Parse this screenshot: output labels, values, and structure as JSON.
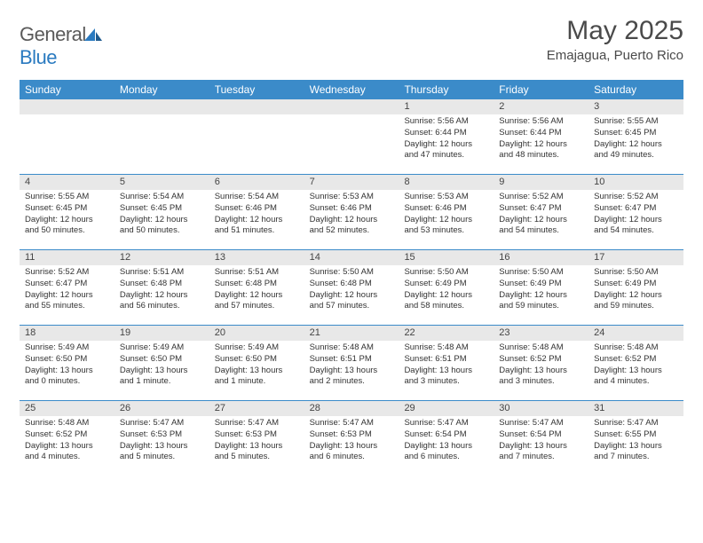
{
  "logo": {
    "text1": "General",
    "text2": "Blue"
  },
  "title": "May 2025",
  "location": "Emajagua, Puerto Rico",
  "header_bg": "#3b8bc9",
  "daynum_bg": "#e8e8e8",
  "weekdays": [
    "Sunday",
    "Monday",
    "Tuesday",
    "Wednesday",
    "Thursday",
    "Friday",
    "Saturday"
  ],
  "weeks": [
    [
      null,
      null,
      null,
      null,
      {
        "n": "1",
        "sr": "5:56 AM",
        "ss": "6:44 PM",
        "dl": "12 hours and 47 minutes."
      },
      {
        "n": "2",
        "sr": "5:56 AM",
        "ss": "6:44 PM",
        "dl": "12 hours and 48 minutes."
      },
      {
        "n": "3",
        "sr": "5:55 AM",
        "ss": "6:45 PM",
        "dl": "12 hours and 49 minutes."
      }
    ],
    [
      {
        "n": "4",
        "sr": "5:55 AM",
        "ss": "6:45 PM",
        "dl": "12 hours and 50 minutes."
      },
      {
        "n": "5",
        "sr": "5:54 AM",
        "ss": "6:45 PM",
        "dl": "12 hours and 50 minutes."
      },
      {
        "n": "6",
        "sr": "5:54 AM",
        "ss": "6:46 PM",
        "dl": "12 hours and 51 minutes."
      },
      {
        "n": "7",
        "sr": "5:53 AM",
        "ss": "6:46 PM",
        "dl": "12 hours and 52 minutes."
      },
      {
        "n": "8",
        "sr": "5:53 AM",
        "ss": "6:46 PM",
        "dl": "12 hours and 53 minutes."
      },
      {
        "n": "9",
        "sr": "5:52 AM",
        "ss": "6:47 PM",
        "dl": "12 hours and 54 minutes."
      },
      {
        "n": "10",
        "sr": "5:52 AM",
        "ss": "6:47 PM",
        "dl": "12 hours and 54 minutes."
      }
    ],
    [
      {
        "n": "11",
        "sr": "5:52 AM",
        "ss": "6:47 PM",
        "dl": "12 hours and 55 minutes."
      },
      {
        "n": "12",
        "sr": "5:51 AM",
        "ss": "6:48 PM",
        "dl": "12 hours and 56 minutes."
      },
      {
        "n": "13",
        "sr": "5:51 AM",
        "ss": "6:48 PM",
        "dl": "12 hours and 57 minutes."
      },
      {
        "n": "14",
        "sr": "5:50 AM",
        "ss": "6:48 PM",
        "dl": "12 hours and 57 minutes."
      },
      {
        "n": "15",
        "sr": "5:50 AM",
        "ss": "6:49 PM",
        "dl": "12 hours and 58 minutes."
      },
      {
        "n": "16",
        "sr": "5:50 AM",
        "ss": "6:49 PM",
        "dl": "12 hours and 59 minutes."
      },
      {
        "n": "17",
        "sr": "5:50 AM",
        "ss": "6:49 PM",
        "dl": "12 hours and 59 minutes."
      }
    ],
    [
      {
        "n": "18",
        "sr": "5:49 AM",
        "ss": "6:50 PM",
        "dl": "13 hours and 0 minutes."
      },
      {
        "n": "19",
        "sr": "5:49 AM",
        "ss": "6:50 PM",
        "dl": "13 hours and 1 minute."
      },
      {
        "n": "20",
        "sr": "5:49 AM",
        "ss": "6:50 PM",
        "dl": "13 hours and 1 minute."
      },
      {
        "n": "21",
        "sr": "5:48 AM",
        "ss": "6:51 PM",
        "dl": "13 hours and 2 minutes."
      },
      {
        "n": "22",
        "sr": "5:48 AM",
        "ss": "6:51 PM",
        "dl": "13 hours and 3 minutes."
      },
      {
        "n": "23",
        "sr": "5:48 AM",
        "ss": "6:52 PM",
        "dl": "13 hours and 3 minutes."
      },
      {
        "n": "24",
        "sr": "5:48 AM",
        "ss": "6:52 PM",
        "dl": "13 hours and 4 minutes."
      }
    ],
    [
      {
        "n": "25",
        "sr": "5:48 AM",
        "ss": "6:52 PM",
        "dl": "13 hours and 4 minutes."
      },
      {
        "n": "26",
        "sr": "5:47 AM",
        "ss": "6:53 PM",
        "dl": "13 hours and 5 minutes."
      },
      {
        "n": "27",
        "sr": "5:47 AM",
        "ss": "6:53 PM",
        "dl": "13 hours and 5 minutes."
      },
      {
        "n": "28",
        "sr": "5:47 AM",
        "ss": "6:53 PM",
        "dl": "13 hours and 6 minutes."
      },
      {
        "n": "29",
        "sr": "5:47 AM",
        "ss": "6:54 PM",
        "dl": "13 hours and 6 minutes."
      },
      {
        "n": "30",
        "sr": "5:47 AM",
        "ss": "6:54 PM",
        "dl": "13 hours and 7 minutes."
      },
      {
        "n": "31",
        "sr": "5:47 AM",
        "ss": "6:55 PM",
        "dl": "13 hours and 7 minutes."
      }
    ]
  ],
  "labels": {
    "sunrise": "Sunrise: ",
    "sunset": "Sunset: ",
    "daylight": "Daylight: "
  }
}
